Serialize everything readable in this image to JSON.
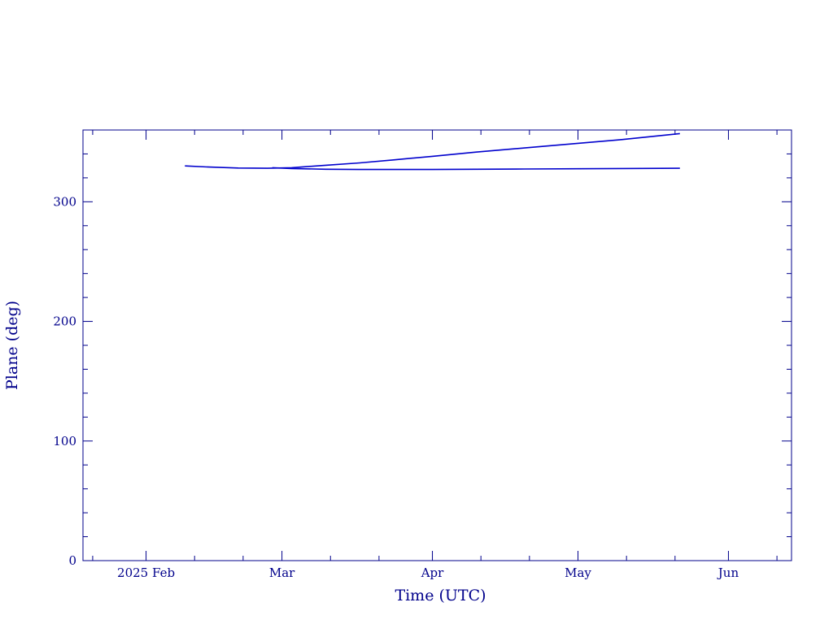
{
  "chart_data": {
    "type": "line",
    "title": "",
    "xlabel": "Time (UTC)",
    "ylabel": "Plane (deg)",
    "x_axis_type": "date",
    "xlim": [
      "2025-01-19",
      "2025-06-14"
    ],
    "ylim": [
      0,
      360
    ],
    "x_tick_labels": [
      {
        "date": "2025-02-01",
        "label": "2025 Feb"
      },
      {
        "date": "2025-03-01",
        "label": "Mar"
      },
      {
        "date": "2025-04-01",
        "label": "Apr"
      },
      {
        "date": "2025-05-01",
        "label": "May"
      },
      {
        "date": "2025-06-01",
        "label": "Jun"
      }
    ],
    "x_minor_ticks": [
      "2025-01-21",
      "2025-02-11",
      "2025-02-21",
      "2025-03-11",
      "2025-03-21",
      "2025-04-11",
      "2025-04-21",
      "2025-05-11",
      "2025-05-21",
      "2025-06-11"
    ],
    "y_ticks": [
      0,
      100,
      200,
      300
    ],
    "y_tick_labels": [
      "0",
      "100",
      "200",
      "300"
    ],
    "y_minor_step": 20,
    "grid": false,
    "colors": {
      "axis": "#00008b",
      "line": "#0000cd"
    },
    "series": [
      {
        "x": [
          "2025-02-09",
          "2025-02-14",
          "2025-02-20",
          "2025-02-26",
          "2025-03-03",
          "2025-03-10",
          "2025-03-17",
          "2025-03-24",
          "2025-04-01",
          "2025-04-10",
          "2025-04-20",
          "2025-04-30",
          "2025-05-10",
          "2025-05-22"
        ],
        "y": [
          330,
          329,
          328.2,
          328,
          328.5,
          330.5,
          332.5,
          335,
          338,
          341.5,
          345,
          348.5,
          352,
          357
        ]
      },
      {
        "x": [
          "2025-02-27",
          "2025-03-03",
          "2025-03-10",
          "2025-03-17",
          "2025-03-24",
          "2025-04-01",
          "2025-04-10",
          "2025-04-20",
          "2025-05-01",
          "2025-05-10",
          "2025-05-22"
        ],
        "y": [
          328.5,
          327.8,
          327.2,
          327,
          327,
          327,
          327.2,
          327.4,
          327.6,
          327.8,
          328
        ]
      }
    ]
  }
}
